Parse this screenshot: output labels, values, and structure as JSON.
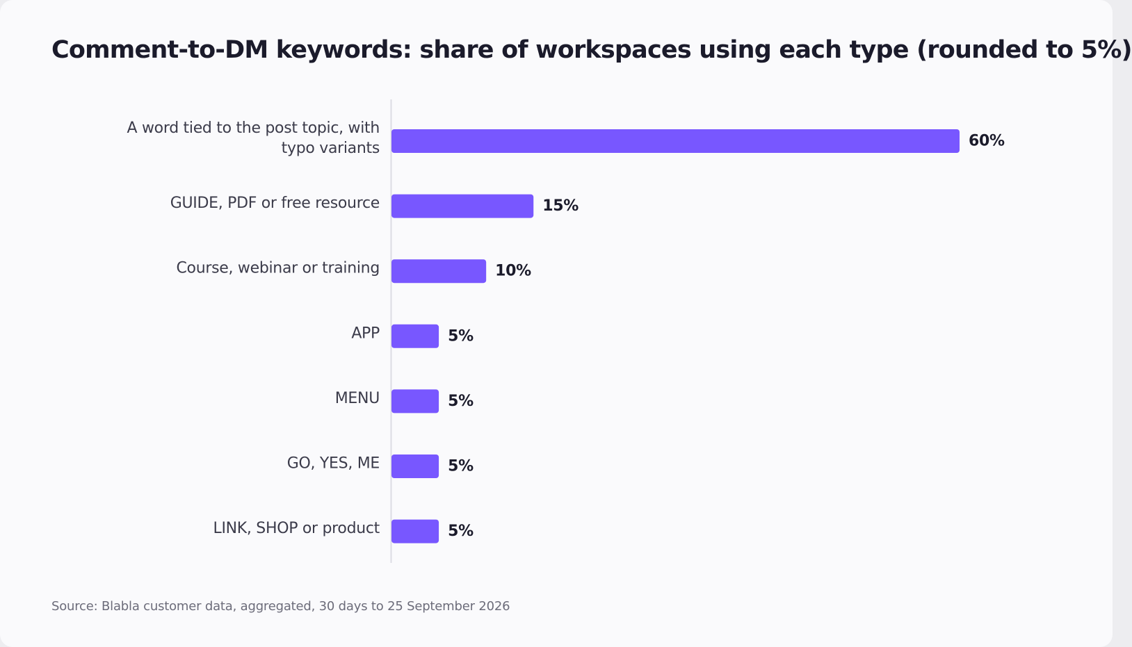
{
  "colors": {
    "bar": "#7857ff",
    "axis": "#dcdce3",
    "title": "#1b1b2b"
  },
  "chart_data": {
    "type": "bar",
    "orientation": "horizontal",
    "title": "Comment-to-DM keywords: share of workspaces using each type (rounded to 5%)",
    "categories": [
      [
        "A word tied to the post topic, with",
        "typo variants"
      ],
      [
        "GUIDE, PDF or free resource"
      ],
      [
        "Course, webinar or training"
      ],
      [
        "APP"
      ],
      [
        "MENU"
      ],
      [
        "GO, YES, ME"
      ],
      [
        "LINK, SHOP or product"
      ]
    ],
    "values": [
      60,
      15,
      10,
      5,
      5,
      5,
      5
    ],
    "value_labels": [
      "60%",
      "15%",
      "10%",
      "5%",
      "5%",
      "5%",
      "5%"
    ],
    "unit": "%",
    "xlim": [
      0,
      60
    ],
    "grid": false,
    "legend": "none"
  },
  "footer": {
    "source": "Source: Blabla customer data, aggregated, 30 days to 25 September 2026"
  }
}
